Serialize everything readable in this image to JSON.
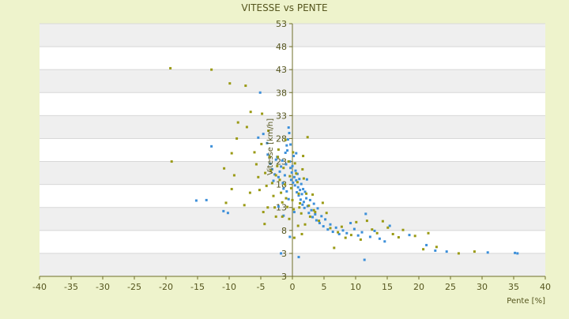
{
  "chart_data": {
    "type": "scatter",
    "title": "VITESSE vs PENTE",
    "xlabel": "Pente [%]",
    "ylabel": "Vitesse [km/h]",
    "xlim": [
      -40,
      40
    ],
    "ylim": [
      -2,
      53
    ],
    "x_ticks": [
      "-40",
      "-35",
      "-30",
      "-25",
      "-20",
      "-15",
      "-10",
      "-5",
      "0",
      "5",
      "10",
      "15",
      "20",
      "25",
      "30",
      "35",
      "40"
    ],
    "y_ticks": [
      "3",
      "3",
      "8",
      "13",
      "18",
      "23",
      "28",
      "33",
      "38",
      "43",
      "48",
      "53"
    ],
    "grid": true,
    "legend": "none",
    "colors": {
      "background": "#eef3cc",
      "plot_band_light": "#ffffff",
      "plot_band_dark": "#efefef",
      "axis_text": "#55551e",
      "title_text": "#55551e",
      "series_1": "#3c8fd9",
      "series_2": "#9a9a14"
    },
    "series": [
      {
        "values": [
          [
            -15.2,
            14.5
          ],
          [
            -13.6,
            14.6
          ],
          [
            -12.8,
            26.3
          ],
          [
            -10.9,
            12.2
          ],
          [
            -10.2,
            11.8
          ],
          [
            -5.1,
            38.0
          ],
          [
            -5.4,
            28.2
          ],
          [
            -4.6,
            29.0
          ],
          [
            -4.0,
            27.0
          ],
          [
            -3.9,
            24.5
          ],
          [
            -3.5,
            22.5
          ],
          [
            -3.2,
            21.3
          ],
          [
            -3.0,
            18.8
          ],
          [
            -2.8,
            20.2
          ],
          [
            -2.6,
            23.4
          ],
          [
            -2.4,
            24.0
          ],
          [
            -2.2,
            19.6
          ],
          [
            -2.0,
            20.8
          ],
          [
            -1.8,
            21.9
          ],
          [
            -1.6,
            23.2
          ],
          [
            -1.5,
            18.3
          ],
          [
            -1.4,
            17.1
          ],
          [
            -1.2,
            20.0
          ],
          [
            -1.1,
            24.9
          ],
          [
            -1.0,
            22.4
          ],
          [
            -0.9,
            26.5
          ],
          [
            -0.8,
            25.4
          ],
          [
            -0.7,
            27.8
          ],
          [
            -0.6,
            30.4
          ],
          [
            -0.5,
            29.2
          ],
          [
            -0.4,
            23.0
          ],
          [
            -0.3,
            21.6
          ],
          [
            -0.2,
            19.0
          ],
          [
            -0.1,
            20.6
          ],
          [
            0.0,
            22.0
          ],
          [
            0.1,
            18.4
          ],
          [
            0.2,
            24.2
          ],
          [
            0.3,
            19.6
          ],
          [
            0.4,
            17.8
          ],
          [
            0.5,
            21.0
          ],
          [
            0.6,
            18.9
          ],
          [
            0.7,
            16.3
          ],
          [
            0.8,
            20.3
          ],
          [
            0.9,
            17.4
          ],
          [
            1.0,
            15.6
          ],
          [
            1.1,
            19.2
          ],
          [
            1.2,
            16.8
          ],
          [
            1.3,
            14.7
          ],
          [
            1.4,
            18.1
          ],
          [
            1.5,
            15.9
          ],
          [
            1.6,
            13.6
          ],
          [
            1.7,
            17.0
          ],
          [
            1.8,
            14.2
          ],
          [
            1.9,
            12.9
          ],
          [
            2.0,
            16.4
          ],
          [
            2.2,
            15.0
          ],
          [
            2.4,
            13.3
          ],
          [
            2.6,
            11.8
          ],
          [
            2.8,
            14.6
          ],
          [
            3.0,
            12.4
          ],
          [
            3.2,
            10.9
          ],
          [
            3.4,
            13.8
          ],
          [
            3.6,
            11.5
          ],
          [
            3.8,
            10.2
          ],
          [
            4.0,
            12.8
          ],
          [
            4.3,
            9.6
          ],
          [
            4.6,
            11.1
          ],
          [
            4.9,
            8.9
          ],
          [
            5.2,
            10.4
          ],
          [
            5.6,
            8.2
          ],
          [
            6.0,
            9.3
          ],
          [
            6.4,
            7.7
          ],
          [
            6.9,
            8.6
          ],
          [
            7.4,
            7.2
          ],
          [
            8.0,
            8.0
          ],
          [
            8.6,
            7.4
          ],
          [
            9.2,
            9.6
          ],
          [
            9.8,
            8.3
          ],
          [
            10.4,
            6.9
          ],
          [
            11.0,
            7.6
          ],
          [
            11.6,
            11.6
          ],
          [
            12.3,
            6.6
          ],
          [
            13.0,
            7.9
          ],
          [
            13.8,
            6.2
          ],
          [
            14.6,
            5.6
          ],
          [
            15.4,
            9.0
          ],
          [
            -1.8,
            3.0
          ],
          [
            -0.4,
            6.6
          ],
          [
            1.0,
            2.2
          ],
          [
            11.4,
            1.6
          ],
          [
            18.5,
            7.0
          ],
          [
            21.2,
            4.8
          ],
          [
            22.6,
            3.6
          ],
          [
            24.4,
            3.4
          ],
          [
            30.9,
            3.2
          ],
          [
            35.2,
            3.1
          ],
          [
            35.6,
            3.0
          ],
          [
            -0.3,
            26.7
          ],
          [
            -0.6,
            14.8
          ],
          [
            -1.4,
            11.2
          ],
          [
            -2.2,
            13.2
          ],
          [
            0.3,
            12.0
          ],
          [
            0.6,
            24.8
          ],
          [
            -0.9,
            16.5
          ],
          [
            2.3,
            19.1
          ]
        ]
      },
      {
        "values": [
          [
            -19.3,
            43.3
          ],
          [
            -19.1,
            23.0
          ],
          [
            -12.8,
            43.0
          ],
          [
            -9.9,
            40.0
          ],
          [
            -7.4,
            39.5
          ],
          [
            -8.6,
            31.5
          ],
          [
            -8.8,
            28.0
          ],
          [
            -9.6,
            24.8
          ],
          [
            -9.2,
            20.0
          ],
          [
            -10.8,
            21.5
          ],
          [
            -10.5,
            14.0
          ],
          [
            -9.6,
            17.0
          ],
          [
            -7.6,
            13.5
          ],
          [
            -7.2,
            30.5
          ],
          [
            -6.6,
            33.8
          ],
          [
            -6.0,
            25.0
          ],
          [
            -5.7,
            22.4
          ],
          [
            -5.4,
            19.6
          ],
          [
            -5.2,
            16.8
          ],
          [
            -4.9,
            26.8
          ],
          [
            -4.8,
            33.4
          ],
          [
            -4.6,
            12.0
          ],
          [
            -4.4,
            9.4
          ],
          [
            -4.3,
            20.5
          ],
          [
            -4.1,
            17.7
          ],
          [
            -3.8,
            29.7
          ],
          [
            -3.6,
            24.0
          ],
          [
            -3.4,
            21.0
          ],
          [
            -3.2,
            18.3
          ],
          [
            -3.0,
            15.5
          ],
          [
            -2.8,
            13.0
          ],
          [
            -2.6,
            11.0
          ],
          [
            -2.4,
            22.0
          ],
          [
            -2.2,
            25.6
          ],
          [
            -2.0,
            19.0
          ],
          [
            -1.8,
            16.2
          ],
          [
            -1.6,
            14.1
          ],
          [
            -1.4,
            21.6
          ],
          [
            -1.2,
            18.0
          ],
          [
            -1.0,
            15.0
          ],
          [
            -0.8,
            13.1
          ],
          [
            -0.6,
            23.0
          ],
          [
            -0.4,
            19.8
          ],
          [
            -0.2,
            17.2
          ],
          [
            0.0,
            14.6
          ],
          [
            0.2,
            12.6
          ],
          [
            0.4,
            22.6
          ],
          [
            0.6,
            20.4
          ],
          [
            0.8,
            18.5
          ],
          [
            1.0,
            16.0
          ],
          [
            1.2,
            13.9
          ],
          [
            1.4,
            11.7
          ],
          [
            1.6,
            21.3
          ],
          [
            1.8,
            19.3
          ],
          [
            2.0,
            9.3
          ],
          [
            2.2,
            16.0
          ],
          [
            2.4,
            28.3
          ],
          [
            2.6,
            13.4
          ],
          [
            2.8,
            11.0
          ],
          [
            3.2,
            15.8
          ],
          [
            3.6,
            12.0
          ],
          [
            4.2,
            10.1
          ],
          [
            4.8,
            14.0
          ],
          [
            5.4,
            11.8
          ],
          [
            6.0,
            8.5
          ],
          [
            6.6,
            4.2
          ],
          [
            7.2,
            7.6
          ],
          [
            7.8,
            8.8
          ],
          [
            8.4,
            6.4
          ],
          [
            9.3,
            7.0
          ],
          [
            10.1,
            9.8
          ],
          [
            10.8,
            6.0
          ],
          [
            11.8,
            10.1
          ],
          [
            12.6,
            8.2
          ],
          [
            13.4,
            7.4
          ],
          [
            14.3,
            10.0
          ],
          [
            15.1,
            8.6
          ],
          [
            15.9,
            7.2
          ],
          [
            16.8,
            6.5
          ],
          [
            17.5,
            8.1
          ],
          [
            19.4,
            6.8
          ],
          [
            20.7,
            3.9
          ],
          [
            21.5,
            7.4
          ],
          [
            22.8,
            4.4
          ],
          [
            26.3,
            3.0
          ],
          [
            28.8,
            3.4
          ],
          [
            -0.5,
            10.5
          ],
          [
            0.9,
            9.0
          ],
          [
            1.5,
            7.2
          ],
          [
            -3.9,
            13.0
          ],
          [
            -6.7,
            16.2
          ],
          [
            -1.1,
            27.7
          ],
          [
            0.1,
            25.0
          ],
          [
            -2.3,
            24.0
          ],
          [
            1.7,
            24.2
          ],
          [
            3.4,
            12.4
          ],
          [
            -2.6,
            20.0
          ],
          [
            -1.6,
            11.0
          ],
          [
            0.3,
            6.4
          ],
          [
            1.1,
            13.0
          ]
        ]
      }
    ]
  }
}
